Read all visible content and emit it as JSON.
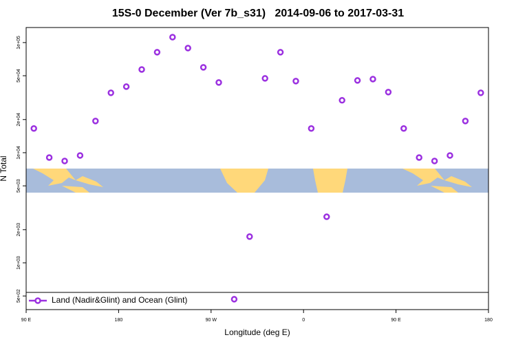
{
  "chart_data": {
    "type": "scatter",
    "title": "15S-0 December (Ver 7b_s31)   2014-09-06 to 2017-03-31",
    "x_label": "Longitude (deg E)",
    "y_label": "N Total",
    "x": [
      97.5,
      112.5,
      127.5,
      142.5,
      157.5,
      172.5,
      187.5,
      202.5,
      217.5,
      232.5,
      247.5,
      262.5,
      277.5,
      292.5,
      307.5,
      322.5,
      337.5,
      352.5,
      367.5,
      382.5,
      397.5,
      412.5,
      427.5,
      442.5,
      457.5,
      472.5,
      487.5,
      502.5,
      517.5,
      532.5
    ],
    "series": [
      {
        "name": "Land (Nadir&Glint) and Ocean (Glint)",
        "color": "#9b30e0",
        "values": [
          16600,
          9040,
          8410,
          9440,
          19400,
          35000,
          39800,
          57000,
          81700,
          112000,
          89100,
          59600,
          43400,
          467,
          1730,
          47300,
          81700,
          44700,
          16600,
          2620,
          29900,
          45300,
          46600,
          35500,
          16600,
          9040,
          8410,
          9440,
          19400,
          35000
        ]
      }
    ],
    "xlim": [
      90,
      540
    ],
    "xticks": [
      {
        "value": 90,
        "label": "90 E"
      },
      180,
      {
        "value": 270,
        "label": "90 W"
      },
      {
        "value": 360,
        "label": "0"
      },
      {
        "value": 450,
        "label": "90 E"
      },
      {
        "value": 540,
        "label": "180"
      }
    ],
    "ylim": [
      376,
      137000
    ],
    "log_y": true,
    "yticks": [
      {
        "value": 500,
        "label": "5e+02"
      },
      {
        "value": 1000,
        "label": "1e+03"
      },
      {
        "value": 2000,
        "label": "2e+03"
      },
      {
        "value": 5000,
        "label": "5e+03"
      },
      {
        "value": 10000,
        "label": "1e+04"
      },
      {
        "value": 20000,
        "label": "2e+04"
      },
      {
        "value": 50000,
        "label": "5e+04"
      },
      {
        "value": 100000,
        "label": "1e+05"
      }
    ],
    "legend": "bottom-left"
  }
}
